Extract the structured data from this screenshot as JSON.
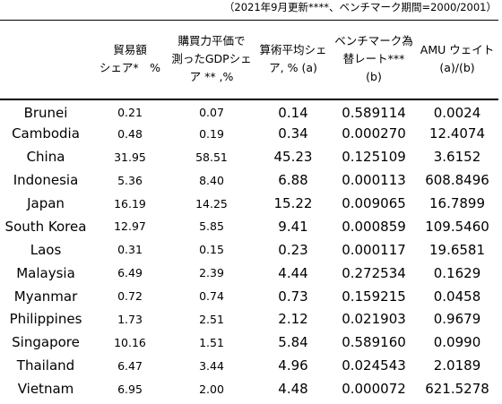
{
  "note": "（2021年9月更新****、ベンチマーク期間=2000/2001）",
  "headers": [
    {
      "lines": [
        ""
      ]
    },
    {
      "lines": [
        "貿易額",
        "シェア*　%"
      ]
    },
    {
      "lines": [
        "購買力平価で",
        "測ったGDPシェ",
        "ア ** ,%"
      ]
    },
    {
      "lines": [
        "算術平均シェ",
        "ア, %  (a)"
      ]
    },
    {
      "lines": [
        "ベンチマーク為",
        "替レート***",
        "(b)"
      ]
    },
    {
      "lines": [
        "AMU ウェイト",
        "(a)/(b)"
      ]
    }
  ],
  "rows": [
    [
      "Brunei",
      "0.21",
      "0.07",
      "0.14",
      "0.589114",
      "0.0024"
    ],
    [
      "Cambodia",
      "0.48",
      "0.19",
      "0.34",
      "0.000270",
      "12.4074"
    ],
    [
      "China",
      "31.95",
      "58.51",
      "45.23",
      "0.125109",
      "3.6152"
    ],
    [
      "Indonesia",
      "5.36",
      "8.40",
      "6.88",
      "0.000113",
      "608.8496"
    ],
    [
      "Japan",
      "16.19",
      "14.25",
      "15.22",
      "0.009065",
      "16.7899"
    ],
    [
      "South Korea",
      "12.97",
      "5.85",
      "9.41",
      "0.000859",
      "109.5460"
    ],
    [
      "Laos",
      "0.31",
      "0.15",
      "0.23",
      "0.000117",
      "19.6581"
    ],
    [
      "Malaysia",
      "6.49",
      "2.39",
      "4.44",
      "0.272534",
      "0.1629"
    ],
    [
      "Myanmar",
      "0.72",
      "0.74",
      "0.73",
      "0.159215",
      "0.0458"
    ],
    [
      "Philippines",
      "1.73",
      "2.51",
      "2.12",
      "0.021903",
      "0.9679"
    ],
    [
      "Singapore",
      "10.16",
      "1.51",
      "5.84",
      "0.589160",
      "0.0990"
    ],
    [
      "Thailand",
      "6.47",
      "3.44",
      "4.96",
      "0.024543",
      "2.0189"
    ],
    [
      "Vietnam",
      "6.95",
      "2.00",
      "4.48",
      "0.000072",
      "621.5278"
    ]
  ]
}
